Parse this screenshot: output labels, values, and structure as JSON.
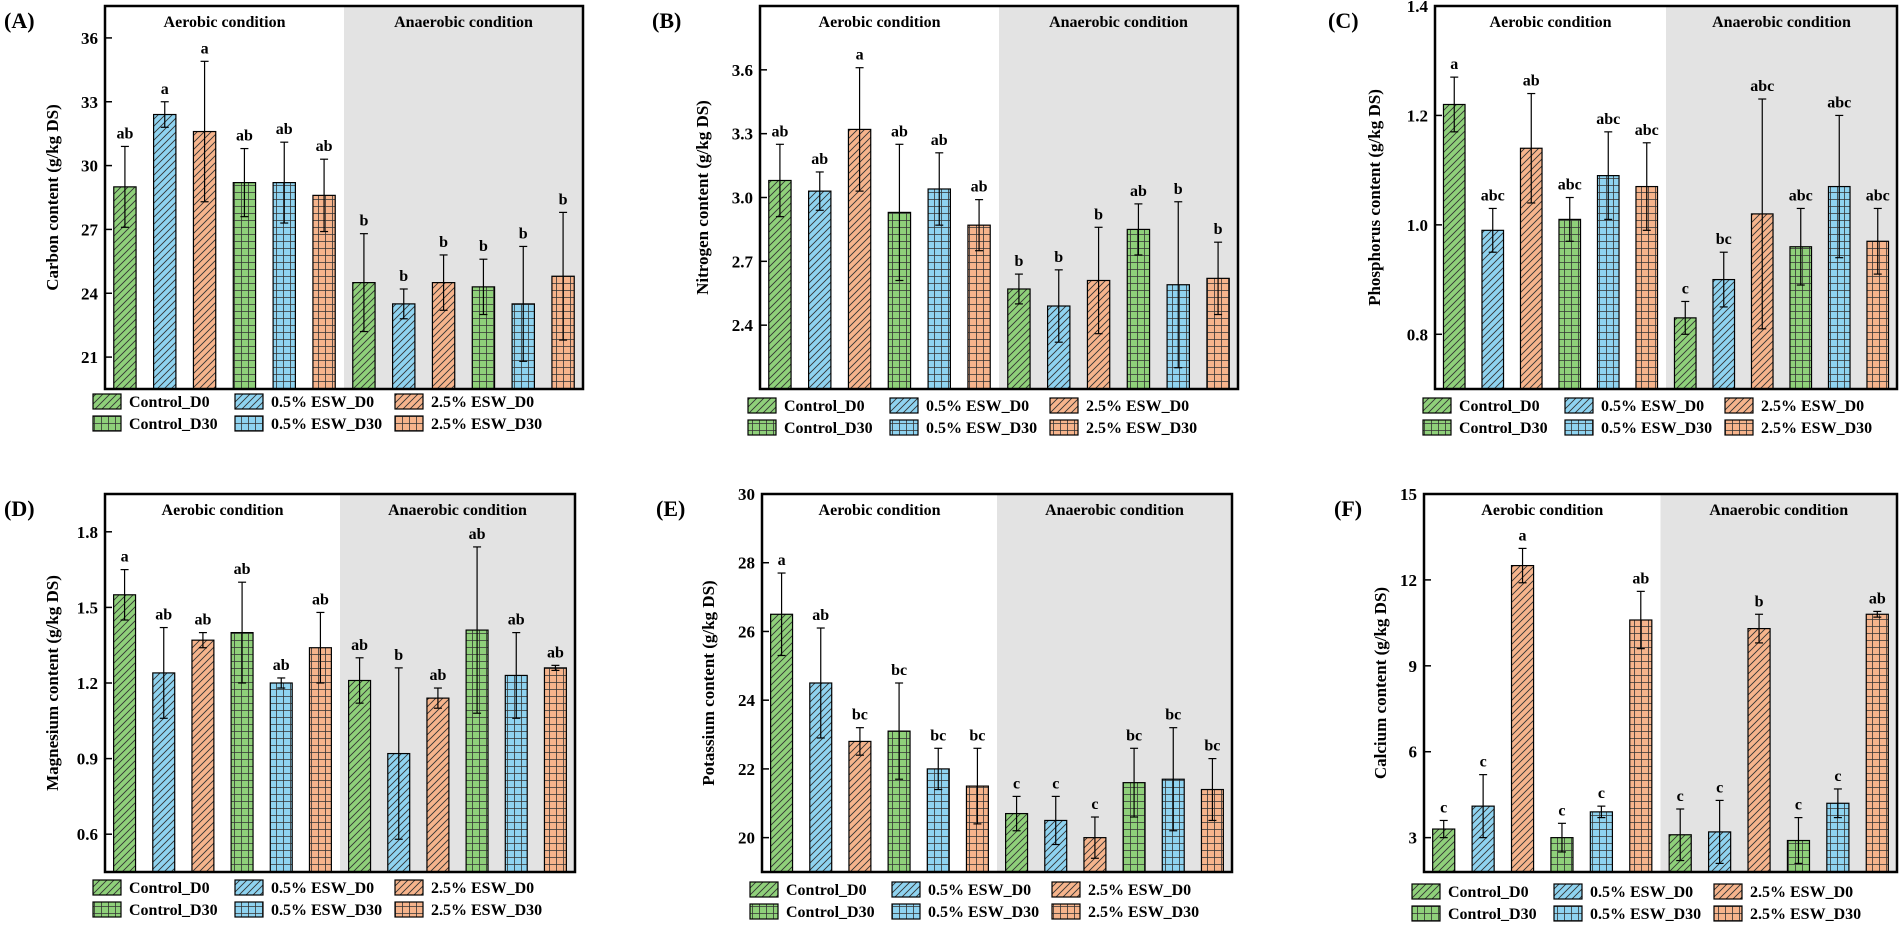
{
  "shared": {
    "condition_labels": [
      "Aerobic condition",
      "Anaerobic condition"
    ],
    "legend": [
      "Control_D0",
      "0.5% ESW_D0",
      "2.5% ESW_D0",
      "Control_D30",
      "0.5% ESW_D30",
      "2.5% ESW_D30"
    ],
    "series_style": [
      {
        "color": "#8fd07a",
        "pattern": "diag"
      },
      {
        "color": "#8fd3f0",
        "pattern": "diag"
      },
      {
        "color": "#f6b48c",
        "pattern": "diag"
      },
      {
        "color": "#8fd07a",
        "pattern": "grid"
      },
      {
        "color": "#8fd3f0",
        "pattern": "grid"
      },
      {
        "color": "#f6b48c",
        "pattern": "grid"
      }
    ],
    "shade_color": "#e3e3e3"
  },
  "chart_data": [
    {
      "type": "bar",
      "panel": "(A)",
      "ylabel": "Carbon content (g/kg DS)",
      "ylim": [
        19.5,
        37.5
      ],
      "yticks": [
        "21",
        "24",
        "27",
        "30",
        "33",
        "36"
      ],
      "values": [
        29.0,
        32.4,
        31.6,
        29.2,
        29.2,
        28.6,
        24.5,
        23.5,
        24.5,
        24.3,
        23.5,
        24.8
      ],
      "errors": [
        1.9,
        0.6,
        3.3,
        1.6,
        1.9,
        1.7,
        2.3,
        0.7,
        1.3,
        1.3,
        2.7,
        3.0
      ],
      "labels": [
        "ab",
        "a",
        "a",
        "ab",
        "ab",
        "ab",
        "b",
        "b",
        "b",
        "b",
        "b",
        "b"
      ]
    },
    {
      "type": "bar",
      "panel": "(B)",
      "ylabel": "Nitrogen content (g/kg DS)",
      "ylim": [
        2.1,
        3.9
      ],
      "yticks": [
        "2.4",
        "2.7",
        "3.0",
        "3.3",
        "3.6"
      ],
      "values": [
        3.08,
        3.03,
        3.32,
        2.93,
        3.04,
        2.87,
        2.57,
        2.49,
        2.61,
        2.85,
        2.59,
        2.62
      ],
      "errors": [
        0.17,
        0.09,
        0.29,
        0.32,
        0.17,
        0.12,
        0.07,
        0.17,
        0.25,
        0.12,
        0.39,
        0.17
      ],
      "labels": [
        "ab",
        "ab",
        "a",
        "ab",
        "ab",
        "ab",
        "b",
        "b",
        "b",
        "ab",
        "b",
        "b"
      ]
    },
    {
      "type": "bar",
      "panel": "(C)",
      "ylabel": "Phosphorus content (g/kg DS)",
      "ylim": [
        0.7,
        1.4
      ],
      "yticks": [
        "0.8",
        "1.0",
        "1.2",
        "1.4"
      ],
      "values": [
        1.22,
        0.99,
        1.14,
        1.01,
        1.09,
        1.07,
        0.83,
        0.9,
        1.02,
        0.96,
        1.07,
        0.97
      ],
      "errors": [
        0.05,
        0.04,
        0.1,
        0.04,
        0.08,
        0.08,
        0.03,
        0.05,
        0.21,
        0.07,
        0.13,
        0.06
      ],
      "labels": [
        "a",
        "abc",
        "ab",
        "abc",
        "abc",
        "abc",
        "c",
        "bc",
        "abc",
        "abc",
        "abc",
        "abc"
      ]
    },
    {
      "type": "bar",
      "panel": "(D)",
      "ylabel": "Magnesium content (g/kg DS)",
      "ylim": [
        0.45,
        1.95
      ],
      "yticks": [
        "0.6",
        "0.9",
        "1.2",
        "1.5",
        "1.8"
      ],
      "values": [
        1.55,
        1.24,
        1.37,
        1.4,
        1.2,
        1.34,
        1.21,
        0.92,
        1.14,
        1.41,
        1.23,
        1.26
      ],
      "errors": [
        0.1,
        0.18,
        0.03,
        0.2,
        0.02,
        0.14,
        0.09,
        0.34,
        0.04,
        0.33,
        0.17,
        0.01
      ],
      "labels": [
        "a",
        "ab",
        "ab",
        "ab",
        "ab",
        "ab",
        "ab",
        "b",
        "ab",
        "ab",
        "ab",
        "ab"
      ]
    },
    {
      "type": "bar",
      "panel": "(E)",
      "ylabel": "Potassium content (g/kg DS)",
      "ylim": [
        19.0,
        30.0
      ],
      "yticks": [
        "20",
        "22",
        "24",
        "26",
        "28",
        "30"
      ],
      "values": [
        26.5,
        24.5,
        22.8,
        23.1,
        22.0,
        21.5,
        20.7,
        20.5,
        20.0,
        21.6,
        21.7,
        21.4
      ],
      "errors": [
        1.2,
        1.6,
        0.4,
        1.4,
        0.6,
        1.1,
        0.5,
        0.7,
        0.6,
        1.0,
        1.5,
        0.9
      ],
      "labels": [
        "a",
        "ab",
        "bc",
        "bc",
        "bc",
        "bc",
        "c",
        "c",
        "c",
        "bc",
        "bc",
        "bc"
      ]
    },
    {
      "type": "bar",
      "panel": "(F)",
      "ylabel": "Calcium content (g/kg DS)",
      "ylim": [
        1.8,
        15.0
      ],
      "yticks": [
        "3",
        "6",
        "9",
        "12",
        "15"
      ],
      "values": [
        3.3,
        4.1,
        12.5,
        3.0,
        3.9,
        10.6,
        3.1,
        3.2,
        10.3,
        2.9,
        4.2,
        10.8
      ],
      "errors": [
        0.3,
        1.1,
        0.6,
        0.5,
        0.2,
        1.0,
        0.9,
        1.1,
        0.5,
        0.8,
        0.5,
        0.1
      ],
      "labels": [
        "c",
        "c",
        "a",
        "c",
        "c",
        "ab",
        "c",
        "c",
        "b",
        "c",
        "c",
        "ab"
      ]
    }
  ]
}
